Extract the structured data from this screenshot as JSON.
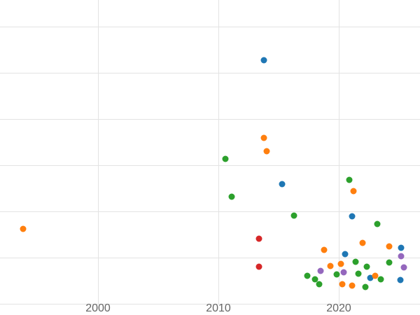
{
  "chart_data": {
    "type": "scatter",
    "title": "",
    "xlabel": "",
    "ylabel": "",
    "legend": "none",
    "x_ticks": [
      {
        "value": 2000,
        "label": "2000"
      },
      {
        "value": 2010,
        "label": "2010"
      },
      {
        "value": 2020,
        "label": "2020"
      }
    ],
    "axes": {
      "x_range": [
        1991.9,
        2026.7
      ],
      "y_range_gridline_units": [
        -0.25,
        6.6
      ],
      "y_tick_labels_visible": false,
      "grid": true
    },
    "y_gridline_units": [
      0,
      1,
      2,
      3,
      4,
      5,
      6
    ],
    "x_gridline_years": [
      2000,
      2010,
      2020
    ],
    "series": [
      {
        "name": "series-blue",
        "color": "#1f77b4",
        "points": [
          [
            2013.8,
            5.27
          ],
          [
            2015.3,
            2.59
          ],
          [
            2021.1,
            1.89
          ],
          [
            2020.5,
            1.08
          ],
          [
            2025.2,
            1.21
          ],
          [
            2022.6,
            0.56
          ],
          [
            2025.1,
            0.52
          ]
        ]
      },
      {
        "name": "series-orange",
        "color": "#ff7f0e",
        "points": [
          [
            2013.8,
            3.59
          ],
          [
            2014.0,
            3.3
          ],
          [
            2021.2,
            2.44
          ],
          [
            1993.8,
            1.62
          ],
          [
            2018.8,
            1.17
          ],
          [
            2022.0,
            1.32
          ],
          [
            2024.2,
            1.24
          ],
          [
            2019.3,
            0.82
          ],
          [
            2020.2,
            0.86
          ],
          [
            2020.3,
            0.42
          ],
          [
            2021.1,
            0.39
          ],
          [
            2023.0,
            0.61
          ]
        ]
      },
      {
        "name": "series-green",
        "color": "#2ca02c",
        "points": [
          [
            2010.6,
            3.14
          ],
          [
            2011.1,
            2.32
          ],
          [
            2020.9,
            2.68
          ],
          [
            2016.3,
            1.91
          ],
          [
            2023.2,
            1.73
          ],
          [
            2017.4,
            0.61
          ],
          [
            2018.0,
            0.53
          ],
          [
            2018.4,
            0.42
          ],
          [
            2019.8,
            0.64
          ],
          [
            2021.4,
            0.91
          ],
          [
            2021.6,
            0.65
          ],
          [
            2022.3,
            0.8
          ],
          [
            2022.2,
            0.36
          ],
          [
            2023.5,
            0.53
          ],
          [
            2024.2,
            0.89
          ]
        ]
      },
      {
        "name": "series-red",
        "color": "#d62728",
        "points": [
          [
            2013.4,
            1.41
          ],
          [
            2013.4,
            0.8
          ]
        ]
      },
      {
        "name": "series-purple",
        "color": "#9467bd",
        "points": [
          [
            2018.5,
            0.71
          ],
          [
            2020.4,
            0.68
          ],
          [
            2025.2,
            1.03
          ],
          [
            2025.4,
            0.79
          ]
        ]
      }
    ]
  },
  "styles": {
    "background": "#ffffff",
    "grid_color": "#e3e3e3",
    "tick_label_color": "#666666"
  }
}
